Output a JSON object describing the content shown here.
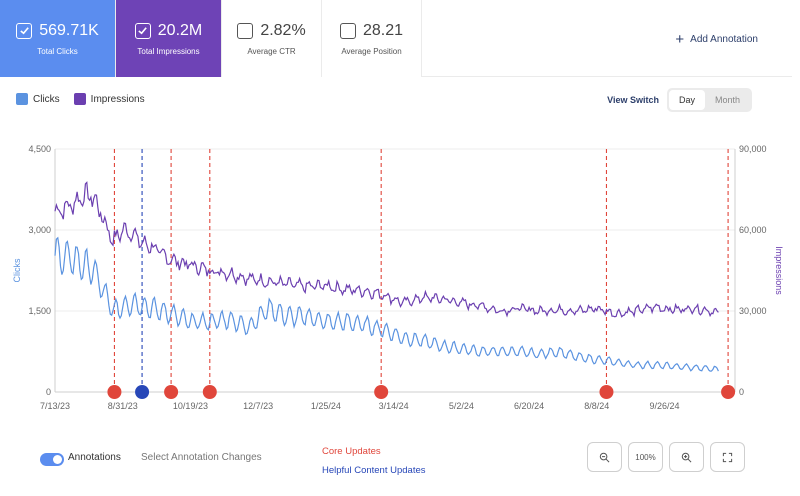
{
  "metrics": [
    {
      "value": "569.71K",
      "label": "Total Clicks",
      "checked": true
    },
    {
      "value": "20.2M",
      "label": "Total Impressions",
      "checked": true
    },
    {
      "value": "2.82%",
      "label": "Average CTR",
      "checked": false
    },
    {
      "value": "28.21",
      "label": "Average Position",
      "checked": false
    }
  ],
  "add_annotation_label": "Add Annotation",
  "legend": {
    "clicks": "Clicks",
    "impressions": "Impressions"
  },
  "view_switch": {
    "label": "View Switch",
    "options": [
      "Day",
      "Month"
    ],
    "selected": "Day"
  },
  "colors": {
    "clicks": "#5b93e0",
    "impressions": "#6b3fb0",
    "core_update": "#e0463b",
    "helpful_update": "#2747b8"
  },
  "bottom": {
    "annotations_label": "Annotations",
    "select_label": "Select Annotation Changes",
    "core_updates_label": "Core Updates",
    "helpful_updates_label": "Helpful Content Updates",
    "zoom_reset_label": "100%"
  },
  "chart_data": {
    "type": "line",
    "x_start": "7/13/23",
    "x_end": "11/15/24",
    "x_ticks": [
      "7/13/23",
      "8/31/23",
      "10/19/23",
      "12/7/23",
      "1/25/24",
      "3/14/24",
      "5/2/24",
      "6/20/24",
      "8/8/24",
      "9/26/24"
    ],
    "ylabel": "Clicks",
    "y2label": "Impressions",
    "ylim": [
      0,
      4500
    ],
    "y2lim": [
      0,
      90000
    ],
    "y_ticks": [
      "0",
      "1,500",
      "3,000",
      "4,500"
    ],
    "y2_ticks": [
      "0",
      "30,000",
      "60,000",
      "90,000"
    ],
    "series": [
      {
        "name": "Clicks",
        "axis": "left",
        "days": [
          0,
          14,
          28,
          42,
          56,
          70,
          84,
          98,
          112,
          126,
          140,
          154,
          168,
          182,
          196,
          210,
          224,
          238,
          252,
          266,
          280,
          294,
          308,
          322,
          336,
          350,
          364,
          378,
          392,
          406,
          420,
          434,
          480
        ],
        "values": [
          2550,
          2450,
          2250,
          1500,
          1650,
          1550,
          1450,
          1300,
          1300,
          1350,
          1200,
          1550,
          1400,
          1400,
          1300,
          1300,
          1250,
          1150,
          1000,
          950,
          850,
          800,
          750,
          750,
          750,
          700,
          750,
          650,
          600,
          550,
          500,
          500,
          420
        ]
      },
      {
        "name": "Impressions",
        "axis": "right",
        "days": [
          0,
          7,
          14,
          21,
          28,
          35,
          42,
          49,
          56,
          63,
          70,
          77,
          84,
          91,
          98,
          112,
          126,
          140,
          154,
          168,
          182,
          196,
          210,
          224,
          238,
          252,
          266,
          280,
          294,
          308,
          322,
          336,
          350,
          364,
          378,
          392,
          406,
          420,
          434,
          448,
          462,
          476,
          480
        ],
        "values": [
          67000,
          68000,
          70000,
          73000,
          72000,
          64000,
          56000,
          60000,
          59000,
          55000,
          54000,
          51000,
          49000,
          48000,
          47000,
          45000,
          44000,
          42000,
          41000,
          40000,
          39000,
          39500,
          38000,
          37500,
          36000,
          33000,
          35000,
          34500,
          33000,
          32000,
          30000,
          31000,
          30000,
          30500,
          30000,
          31000,
          29000,
          30000,
          31500,
          30500,
          31000,
          30000,
          29000
        ]
      }
    ],
    "annotations": [
      {
        "date": "8/25/23",
        "day": 43,
        "type": "core"
      },
      {
        "date": "9/14/23",
        "day": 63,
        "type": "helpful"
      },
      {
        "date": "10/5/23",
        "day": 84,
        "type": "core"
      },
      {
        "date": "11/2/23",
        "day": 112,
        "type": "core"
      },
      {
        "date": "3/5/24",
        "day": 236,
        "type": "core"
      },
      {
        "date": "8/15/24",
        "day": 399,
        "type": "core"
      },
      {
        "date": "11/11/24",
        "day": 487,
        "type": "core"
      }
    ]
  }
}
